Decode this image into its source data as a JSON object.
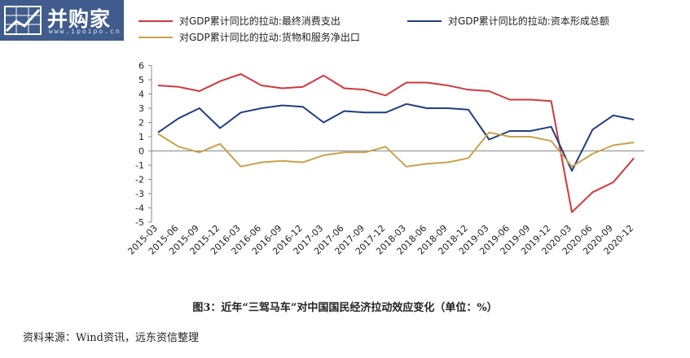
{
  "logo": {
    "text": "并购家",
    "url": "www.ipoipo.cn"
  },
  "chart_data": {
    "type": "line",
    "title": "",
    "xlabel": "",
    "ylabel": "",
    "ylim": [
      -5,
      6
    ],
    "yticks": [
      -5,
      -4,
      -3,
      -2,
      -1,
      0,
      1,
      2,
      3,
      4,
      5,
      6
    ],
    "grid": false,
    "legend_position": "top",
    "categories": [
      "2015-03",
      "2015-06",
      "2015-09",
      "2015-12",
      "2016-03",
      "2016-06",
      "2016-09",
      "2016-12",
      "2017-03",
      "2017-06",
      "2017-09",
      "2017-12",
      "2018-03",
      "2018-06",
      "2018-09",
      "2018-12",
      "2019-03",
      "2019-06",
      "2019-09",
      "2019-12",
      "2020-03",
      "2020-06",
      "2020-09",
      "2020-12"
    ],
    "series": [
      {
        "name": "对GDP累计同比的拉动:最终消费支出",
        "color": "#d1383d",
        "values": [
          4.6,
          4.5,
          4.2,
          4.9,
          5.4,
          4.6,
          4.4,
          4.5,
          5.3,
          4.4,
          4.3,
          3.9,
          4.8,
          4.8,
          4.6,
          4.3,
          4.2,
          3.6,
          3.6,
          3.5,
          -4.3,
          -2.9,
          -2.2,
          -0.5
        ]
      },
      {
        "name": "对GDP累计同比的拉动:资本形成总额",
        "color": "#1f3e82",
        "values": [
          1.3,
          2.3,
          3.0,
          1.6,
          2.7,
          3.0,
          3.2,
          3.1,
          2.0,
          2.8,
          2.7,
          2.7,
          3.3,
          3.0,
          3.0,
          2.9,
          0.8,
          1.4,
          1.4,
          1.7,
          -1.4,
          1.5,
          2.5,
          2.2
        ]
      },
      {
        "name": "对GDP累计同比的拉动:货物和服务净出口",
        "color": "#c9a14d",
        "values": [
          1.2,
          0.3,
          -0.1,
          0.5,
          -1.1,
          -0.8,
          -0.7,
          -0.8,
          -0.3,
          -0.1,
          -0.1,
          0.3,
          -1.1,
          -0.9,
          -0.8,
          -0.5,
          1.3,
          1.0,
          1.0,
          0.7,
          -1.1,
          -0.2,
          0.4,
          0.6
        ]
      }
    ]
  },
  "caption": "图3：近年“三驾马车”对中国国民经济拉动效应变化（单位：%）",
  "source": "资料来源：Wind资讯，远东资信整理"
}
